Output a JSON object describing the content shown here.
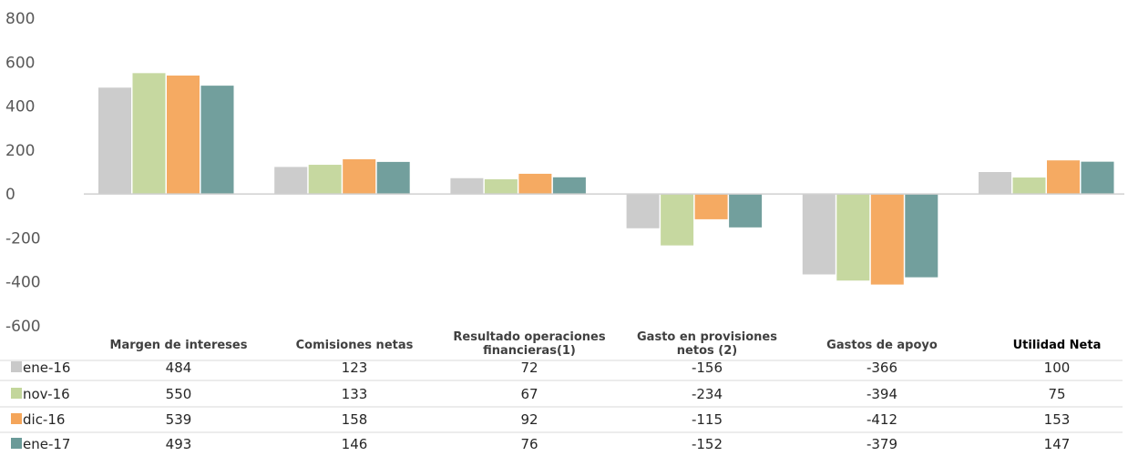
{
  "chart_data": {
    "type": "bar",
    "categories": [
      [
        "Margen de intereses"
      ],
      [
        "Comisiones netas"
      ],
      [
        "Resultado operaciones",
        "financieras(1)"
      ],
      [
        "Gasto en provisiones",
        "netos (2)"
      ],
      [
        "Gastos de apoyo"
      ],
      [
        "Utilidad Neta"
      ]
    ],
    "series": [
      {
        "name": "ene-16",
        "color": "#c9c9c9",
        "values": [
          484,
          123,
          72,
          -156,
          -366,
          100
        ]
      },
      {
        "name": "nov-16",
        "color": "#c3d69b",
        "values": [
          550,
          133,
          67,
          -234,
          -394,
          75
        ]
      },
      {
        "name": "dic-16",
        "color": "#f4a55a",
        "values": [
          539,
          158,
          92,
          -115,
          -412,
          153
        ]
      },
      {
        "name": "ene-17",
        "color": "#6a9a98",
        "values": [
          493,
          146,
          76,
          -152,
          -379,
          147
        ]
      }
    ],
    "ylim": [
      -600,
      800
    ],
    "yticks": [
      800,
      600,
      400,
      200,
      0,
      -200,
      -400,
      -600
    ],
    "legend": "data-table"
  }
}
